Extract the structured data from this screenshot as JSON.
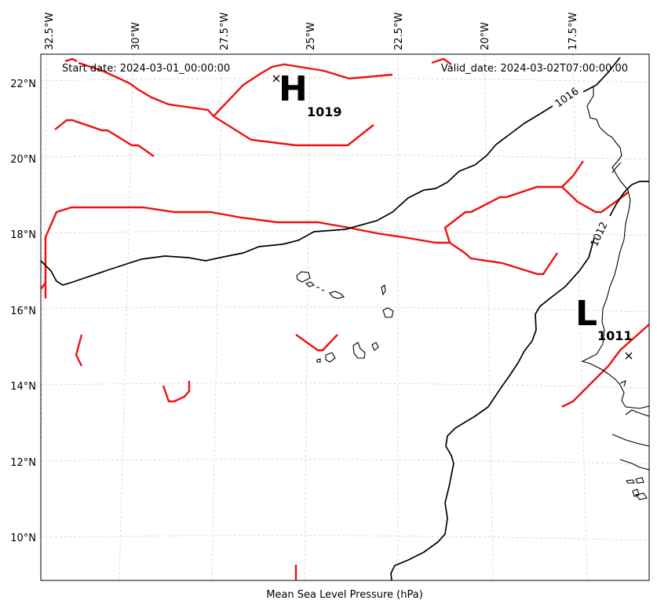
{
  "map": {
    "start_date": "Start date: 2024-03-01_00:00:00",
    "valid_date": "Valid_date: 2024-03-02T07:00:00.00",
    "xlabel": "Mean Sea Level Pressure (hPa)",
    "lon_labels": [
      "32.5°W",
      "30°W",
      "27.5°W",
      "25°W",
      "22.5°W",
      "20°W",
      "17.5°W"
    ],
    "lat_labels": [
      "22°N",
      "20°N",
      "18°N",
      "16°N",
      "14°N",
      "12°N",
      "10°N"
    ],
    "systems": [
      {
        "type": "high",
        "symbol": "H",
        "pressure": "1019"
      },
      {
        "type": "low",
        "symbol": "L",
        "pressure": "1011"
      }
    ],
    "contour_labels": [
      "1016",
      "1012"
    ],
    "colors": {
      "isobar": "#000000",
      "front": "#ee1111",
      "coast": "#000000",
      "grid": "#cccccc"
    }
  }
}
